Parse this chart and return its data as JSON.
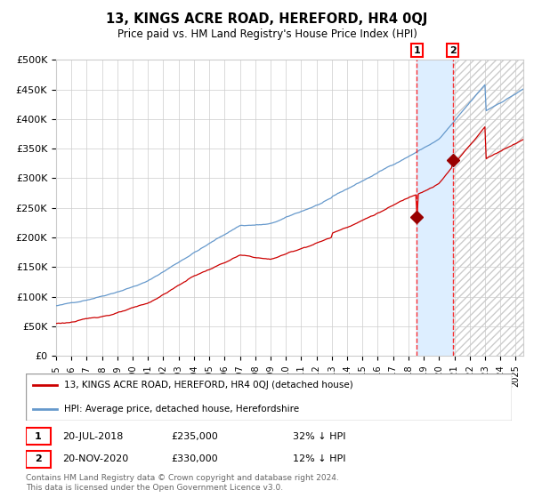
{
  "title": "13, KINGS ACRE ROAD, HEREFORD, HR4 0QJ",
  "subtitle": "Price paid vs. HM Land Registry's House Price Index (HPI)",
  "red_label": "13, KINGS ACRE ROAD, HEREFORD, HR4 0QJ (detached house)",
  "blue_label": "HPI: Average price, detached house, Herefordshire",
  "annotation1_date": "20-JUL-2018",
  "annotation1_price": "£235,000",
  "annotation1_pct": "32% ↓ HPI",
  "annotation2_date": "20-NOV-2020",
  "annotation2_price": "£330,000",
  "annotation2_pct": "12% ↓ HPI",
  "footer": "Contains HM Land Registry data © Crown copyright and database right 2024.\nThis data is licensed under the Open Government Licence v3.0.",
  "red_color": "#cc0000",
  "blue_color": "#6699cc",
  "shaded_color": "#ddeeff",
  "hatch_color": "#cccccc",
  "ylim": [
    0,
    500000
  ],
  "yticks": [
    0,
    50000,
    100000,
    150000,
    200000,
    250000,
    300000,
    350000,
    400000,
    450000,
    500000
  ],
  "ytick_labels": [
    "£0",
    "£50K",
    "£100K",
    "£150K",
    "£200K",
    "£250K",
    "£300K",
    "£350K",
    "£400K",
    "£450K",
    "£500K"
  ],
  "xlim_start": 1995,
  "xlim_end": 2025.5,
  "n_months": 366,
  "transaction1_year": 2018.55,
  "transaction2_year": 2020.9,
  "transaction1_value": 235000,
  "transaction2_value": 330000
}
